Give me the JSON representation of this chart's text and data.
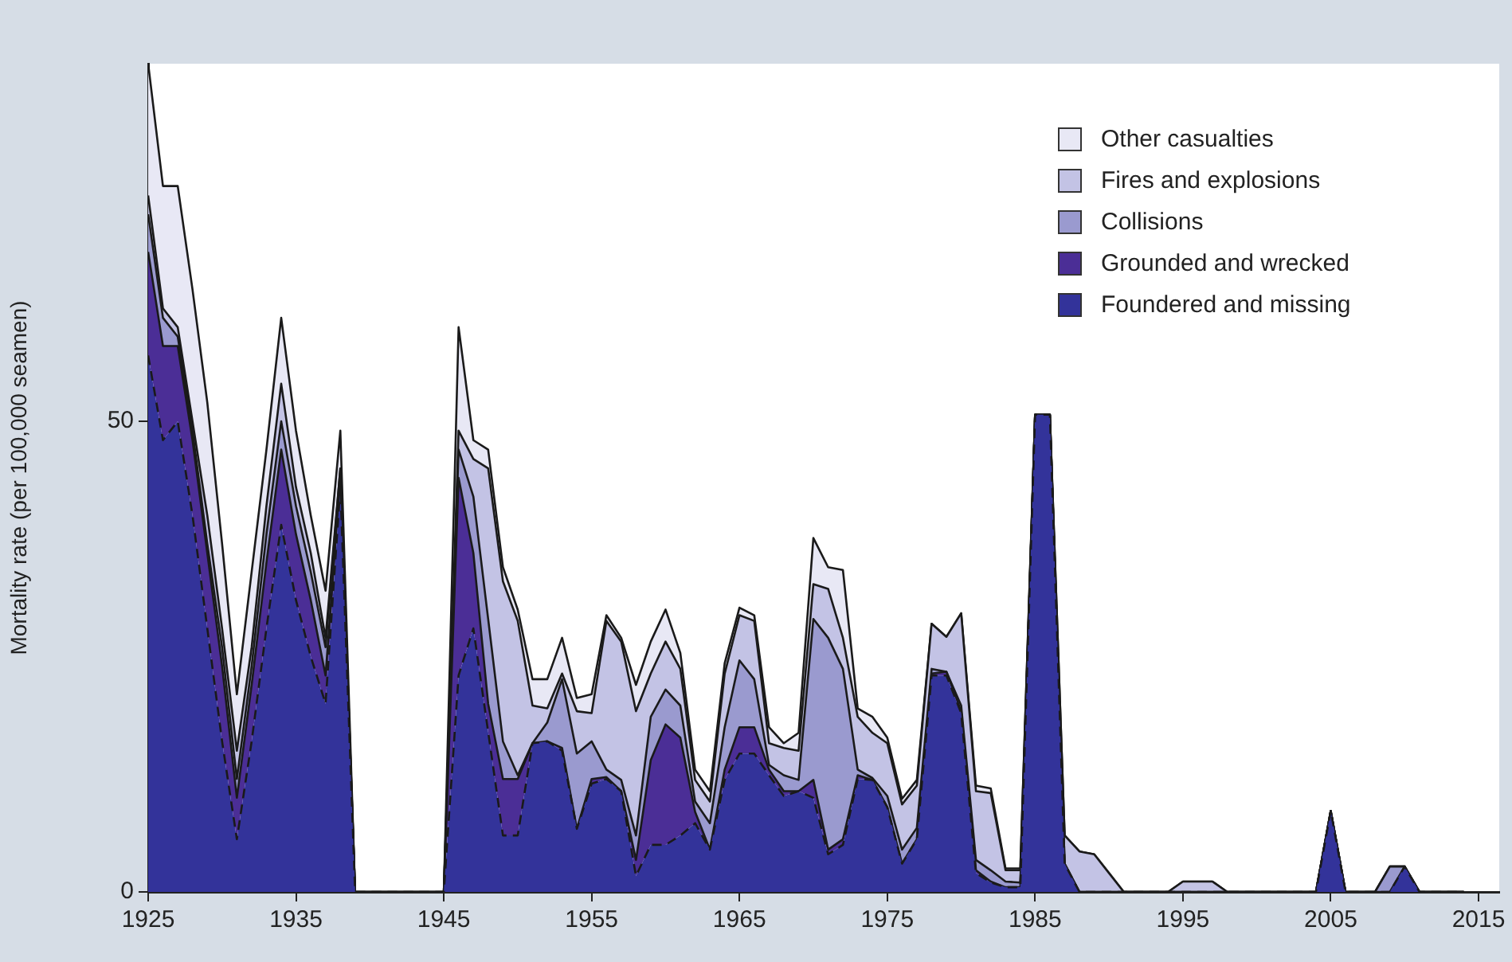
{
  "chart_data": {
    "type": "area",
    "stacked": true,
    "ylabel": "Mortality rate (per 100,000 seamen)",
    "x": [
      1925,
      1926,
      1927,
      1928,
      1929,
      1930,
      1931,
      1932,
      1933,
      1934,
      1935,
      1936,
      1937,
      1938,
      1939,
      1940,
      1941,
      1942,
      1943,
      1944,
      1945,
      1946,
      1947,
      1948,
      1949,
      1950,
      1951,
      1952,
      1953,
      1954,
      1955,
      1956,
      1957,
      1958,
      1959,
      1960,
      1961,
      1962,
      1963,
      1964,
      1965,
      1966,
      1967,
      1968,
      1969,
      1970,
      1971,
      1972,
      1973,
      1974,
      1975,
      1976,
      1977,
      1978,
      1979,
      1980,
      1981,
      1982,
      1983,
      1984,
      1985,
      1986,
      1987,
      1988,
      1989,
      1990,
      1991,
      1992,
      1993,
      1994,
      1995,
      1996,
      1997,
      1998,
      1999,
      2000,
      2001,
      2002,
      2003,
      2004,
      2005,
      2006,
      2007,
      2008,
      2009,
      2010,
      2011,
      2012,
      2013,
      2014
    ],
    "series": [
      {
        "name": "Foundered and missing",
        "color": "#33339a",
        "line_style": "dashed",
        "values": [
          57,
          48,
          50,
          40,
          28,
          16,
          5.6,
          16,
          28,
          39,
          31,
          25,
          20,
          43,
          0,
          0,
          0,
          0,
          0,
          0,
          0,
          23,
          28,
          17,
          6,
          6,
          15.8,
          16,
          15,
          6.7,
          11.5,
          12,
          10.7,
          1.7,
          5,
          5,
          6,
          7.3,
          4.5,
          11.9,
          14.7,
          14.7,
          12.4,
          10.2,
          10.7,
          10,
          4,
          5,
          12,
          11.9,
          9,
          3,
          5.6,
          23,
          23,
          19,
          2,
          1,
          0.5,
          0.5,
          50.7,
          50.7,
          3,
          0,
          0,
          0,
          0,
          0,
          0,
          0,
          0,
          0,
          0,
          0,
          0,
          0,
          0,
          0,
          0,
          0,
          8.6,
          0,
          0,
          0,
          0,
          2.7,
          0,
          0,
          0,
          0
        ]
      },
      {
        "name": "Grounded and wrecked",
        "color": "#4b2e96",
        "values": [
          11,
          10,
          8,
          8,
          8,
          8,
          4.4,
          6,
          7,
          8,
          7,
          6,
          3,
          1,
          0,
          0,
          0,
          0,
          0,
          0,
          0,
          21,
          8,
          3,
          6,
          6,
          0,
          0,
          0.3,
          0,
          0.5,
          0.2,
          0,
          1.7,
          9,
          12.8,
          10.4,
          1.2,
          0,
          1.1,
          2.8,
          2.8,
          0.6,
          0.5,
          0,
          1.9,
          0.5,
          0.6,
          0.4,
          0,
          0,
          0,
          0,
          0.2,
          0.4,
          0.2,
          0.3,
          0.1,
          0,
          0,
          0,
          0,
          0,
          0,
          0,
          0,
          0,
          0,
          0,
          0,
          0,
          0,
          0,
          0,
          0,
          0,
          0,
          0,
          0,
          0,
          0,
          0,
          0,
          0,
          0,
          0,
          0,
          0,
          0,
          0
        ]
      },
      {
        "name": "Collisions",
        "color": "#9a9acf",
        "values": [
          4,
          3,
          1,
          1,
          1,
          2,
          2,
          2,
          3,
          3,
          3,
          3,
          3,
          1,
          0,
          0,
          0,
          0,
          0,
          0,
          0,
          3,
          6,
          9,
          4,
          0.4,
          0,
          2,
          7.3,
          8,
          4,
          0.8,
          1.2,
          2.6,
          4.6,
          3.7,
          3.4,
          1.1,
          2.8,
          4.5,
          7.1,
          5.1,
          0.5,
          1.7,
          1.2,
          17.1,
          22.5,
          18.1,
          0.6,
          0.2,
          1.2,
          1.5,
          1.2,
          0.5,
          0,
          0.6,
          1.1,
          1.2,
          0.6,
          0.5,
          0,
          0,
          0,
          0,
          0,
          0,
          0,
          0,
          0,
          0,
          0,
          0,
          0,
          0,
          0,
          0,
          0,
          0,
          0,
          0,
          0,
          0,
          0,
          0,
          2.7,
          0,
          0,
          0,
          0,
          0
        ]
      },
      {
        "name": "Fires and explosions",
        "color": "#c3c3e5",
        "values": [
          2,
          1,
          1,
          1,
          3,
          2,
          3,
          2,
          3,
          4,
          2,
          2,
          1,
          0,
          0,
          0,
          0,
          0,
          0,
          0,
          0,
          2,
          4,
          16,
          17,
          16.4,
          4,
          1.5,
          0.6,
          4.5,
          3,
          15.8,
          14.7,
          13.2,
          4.6,
          5.1,
          3.9,
          2.3,
          2.3,
          5.7,
          4.8,
          6.2,
          2.3,
          2.9,
          3.1,
          3.7,
          5.2,
          3.3,
          5.6,
          4.8,
          5.6,
          4.8,
          4.5,
          4.8,
          3.7,
          9.8,
          7.3,
          8.2,
          1.2,
          1.3,
          0,
          0,
          3,
          4.3,
          4,
          2,
          0,
          0,
          0,
          0,
          1.1,
          1.1,
          1.1,
          0,
          0,
          0,
          0,
          0,
          0,
          0,
          0,
          0,
          0,
          0,
          0,
          0,
          0,
          0,
          0,
          0
        ]
      },
      {
        "name": "Other casualties",
        "color": "#e8e8f5",
        "values": [
          14,
          13,
          15,
          14,
          12,
          9,
          6,
          8,
          6,
          7,
          6,
          4,
          5,
          4,
          0,
          0,
          0,
          0,
          0,
          0,
          0,
          11,
          2,
          2,
          1.5,
          1.2,
          2.8,
          3.1,
          3.8,
          1.4,
          2,
          0.6,
          0.4,
          2.8,
          3.4,
          3.4,
          1.7,
          1.1,
          1.1,
          1.1,
          0.8,
          0.6,
          1.7,
          0.5,
          1.9,
          4.9,
          2.3,
          7.2,
          0.9,
          1.7,
          0.6,
          0.6,
          0.6,
          0,
          0,
          0,
          0.6,
          0.5,
          0.2,
          0.2,
          0,
          0,
          0,
          0,
          0,
          0,
          0,
          0,
          0,
          0,
          0,
          0,
          0,
          0,
          0,
          0,
          0,
          0,
          0,
          0,
          0,
          0,
          0,
          0,
          0,
          0,
          0,
          0,
          0,
          0
        ]
      }
    ],
    "xlim": [
      1925,
      2016.4
    ],
    "xticks": [
      1925,
      1935,
      1945,
      1955,
      1965,
      1975,
      1985,
      1995,
      2005,
      2015
    ],
    "ylim": [
      0,
      88
    ],
    "yticks": [
      0,
      50
    ],
    "grid": false,
    "legend": "top right"
  }
}
